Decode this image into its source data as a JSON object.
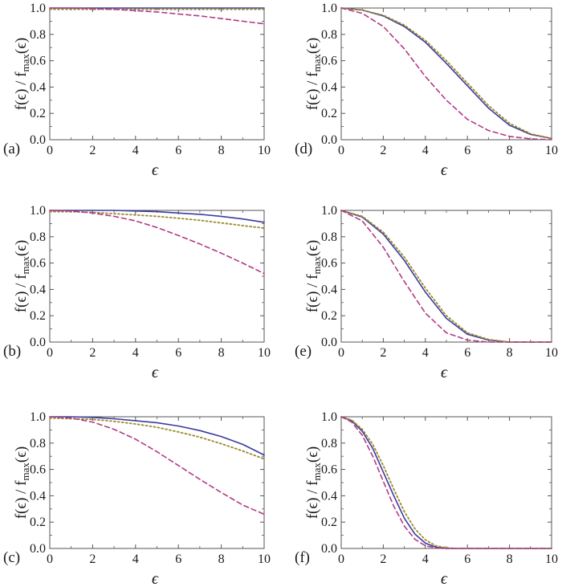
{
  "figure": {
    "colors": {
      "solid": "#3b3b9e",
      "dotted": "#9c8a2a",
      "dashed": "#b23a86",
      "axis": "#555555"
    }
  },
  "chart_data": [
    {
      "panel": "(a)",
      "type": "line",
      "xlabel": "ϵ",
      "ylabel_main": "f(ϵ) / f",
      "ylabel_sub": "max",
      "ylabel_tail": "(ϵ)",
      "xlim": [
        0,
        10
      ],
      "ylim": [
        0,
        1.0
      ],
      "xticks": [
        "0",
        "2",
        "4",
        "6",
        "8",
        "10"
      ],
      "yticks": [
        "0.0",
        "0.2",
        "0.4",
        "0.6",
        "0.8",
        "1.0"
      ],
      "x": [
        0,
        1,
        2,
        3,
        4,
        5,
        6,
        7,
        8,
        9,
        10
      ],
      "series": [
        {
          "style": "solid",
          "values": [
            1.0,
            1.0,
            1.0,
            1.0,
            1.0,
            1.0,
            1.0,
            1.0,
            1.0,
            1.0,
            1.0
          ]
        },
        {
          "style": "dotted",
          "values": [
            0.99,
            0.99,
            0.99,
            0.99,
            0.99,
            0.99,
            0.99,
            0.99,
            0.99,
            0.99,
            0.99
          ]
        },
        {
          "style": "dashed",
          "values": [
            1.0,
            1.0,
            0.995,
            0.99,
            0.98,
            0.97,
            0.955,
            0.94,
            0.92,
            0.9,
            0.88
          ]
        }
      ]
    },
    {
      "panel": "(b)",
      "type": "line",
      "xlabel": "ϵ",
      "ylabel_main": "f(ϵ) / f",
      "ylabel_sub": "max",
      "ylabel_tail": "(ϵ)",
      "xlim": [
        0,
        10
      ],
      "ylim": [
        0,
        1.0
      ],
      "xticks": [
        "0",
        "2",
        "4",
        "6",
        "8",
        "10"
      ],
      "yticks": [
        "0.0",
        "0.2",
        "0.4",
        "0.6",
        "0.8",
        "1.0"
      ],
      "x": [
        0,
        1,
        2,
        3,
        4,
        5,
        6,
        7,
        8,
        9,
        10
      ],
      "series": [
        {
          "style": "solid",
          "values": [
            1.0,
            1.0,
            1.0,
            1.0,
            0.995,
            0.99,
            0.98,
            0.97,
            0.955,
            0.935,
            0.91
          ]
        },
        {
          "style": "dotted",
          "values": [
            0.99,
            0.99,
            0.985,
            0.975,
            0.965,
            0.955,
            0.94,
            0.925,
            0.905,
            0.885,
            0.865
          ]
        },
        {
          "style": "dashed",
          "values": [
            1.0,
            0.995,
            0.98,
            0.955,
            0.92,
            0.87,
            0.81,
            0.745,
            0.675,
            0.6,
            0.52
          ]
        }
      ]
    },
    {
      "panel": "(c)",
      "type": "line",
      "xlabel": "ϵ",
      "ylabel_main": "f(ϵ) / f",
      "ylabel_sub": "max",
      "ylabel_tail": "(ϵ)",
      "xlim": [
        0,
        10
      ],
      "ylim": [
        0,
        1.0
      ],
      "xticks": [
        "0",
        "2",
        "4",
        "6",
        "8",
        "10"
      ],
      "yticks": [
        "0.0",
        "0.2",
        "0.4",
        "0.6",
        "0.8",
        "1.0"
      ],
      "x": [
        0,
        1,
        2,
        3,
        4,
        5,
        6,
        7,
        8,
        9,
        10
      ],
      "series": [
        {
          "style": "solid",
          "values": [
            1.0,
            1.0,
            0.995,
            0.985,
            0.97,
            0.955,
            0.93,
            0.895,
            0.85,
            0.79,
            0.71
          ]
        },
        {
          "style": "dotted",
          "values": [
            0.99,
            0.985,
            0.98,
            0.965,
            0.945,
            0.92,
            0.885,
            0.845,
            0.795,
            0.74,
            0.68
          ]
        },
        {
          "style": "dashed",
          "values": [
            1.0,
            0.99,
            0.96,
            0.905,
            0.83,
            0.735,
            0.63,
            0.525,
            0.425,
            0.33,
            0.26
          ]
        }
      ]
    },
    {
      "panel": "(d)",
      "type": "line",
      "xlabel": "ϵ",
      "ylabel_main": "f(ϵ) / f",
      "ylabel_sub": "max",
      "ylabel_tail": "(ϵ)",
      "xlim": [
        0,
        10
      ],
      "ylim": [
        0,
        1.0
      ],
      "xticks": [
        "0",
        "2",
        "4",
        "6",
        "8",
        "10"
      ],
      "yticks": [
        "0.0",
        "0.2",
        "0.4",
        "0.6",
        "0.8",
        "1.0"
      ],
      "x": [
        0,
        1,
        2,
        3,
        4,
        5,
        6,
        7,
        8,
        9,
        10
      ],
      "series": [
        {
          "style": "solid",
          "values": [
            1.0,
            0.985,
            0.94,
            0.86,
            0.74,
            0.58,
            0.41,
            0.24,
            0.11,
            0.04,
            0.01
          ]
        },
        {
          "style": "dotted",
          "values": [
            1.0,
            0.985,
            0.945,
            0.87,
            0.755,
            0.6,
            0.43,
            0.26,
            0.125,
            0.045,
            0.01
          ]
        },
        {
          "style": "dashed",
          "values": [
            1.0,
            0.96,
            0.86,
            0.69,
            0.48,
            0.3,
            0.155,
            0.07,
            0.025,
            0.007,
            0.0
          ]
        }
      ]
    },
    {
      "panel": "(e)",
      "type": "line",
      "xlabel": "ϵ",
      "ylabel_main": "f(ϵ) / f",
      "ylabel_sub": "max",
      "ylabel_tail": "(ϵ)",
      "xlim": [
        0,
        10
      ],
      "ylim": [
        0,
        1.0
      ],
      "xticks": [
        "0",
        "2",
        "4",
        "6",
        "8",
        "10"
      ],
      "yticks": [
        "0.0",
        "0.2",
        "0.4",
        "0.6",
        "0.8",
        "1.0"
      ],
      "x": [
        0,
        1,
        2,
        3,
        4,
        5,
        6,
        7,
        8,
        9,
        10
      ],
      "series": [
        {
          "style": "solid",
          "values": [
            1.0,
            0.95,
            0.82,
            0.62,
            0.38,
            0.18,
            0.06,
            0.015,
            0.0,
            0.0,
            0.0
          ]
        },
        {
          "style": "dotted",
          "values": [
            1.0,
            0.955,
            0.835,
            0.645,
            0.41,
            0.2,
            0.07,
            0.02,
            0.0,
            0.0,
            0.0
          ]
        },
        {
          "style": "dashed",
          "values": [
            1.0,
            0.92,
            0.72,
            0.46,
            0.22,
            0.07,
            0.015,
            0.0,
            0.0,
            0.0,
            0.0
          ]
        }
      ]
    },
    {
      "panel": "(f)",
      "type": "line",
      "xlabel": "ϵ",
      "ylabel_main": "f(ϵ) / f",
      "ylabel_sub": "max",
      "ylabel_tail": "(ϵ)",
      "xlim": [
        0,
        10
      ],
      "ylim": [
        0,
        1.0
      ],
      "xticks": [
        "0",
        "2",
        "4",
        "6",
        "8",
        "10"
      ],
      "yticks": [
        "0.0",
        "0.2",
        "0.4",
        "0.6",
        "0.8",
        "1.0"
      ],
      "x": [
        0,
        0.5,
        1,
        1.5,
        2,
        2.5,
        3,
        3.5,
        4,
        4.5,
        5,
        5.5,
        6,
        7,
        8,
        9,
        10
      ],
      "series": [
        {
          "style": "solid",
          "values": [
            1.0,
            0.97,
            0.89,
            0.76,
            0.58,
            0.4,
            0.23,
            0.11,
            0.04,
            0.01,
            0.0,
            0.0,
            0.0,
            0.0,
            0.0,
            0.0,
            0.0
          ]
        },
        {
          "style": "dotted",
          "values": [
            1.0,
            0.975,
            0.905,
            0.79,
            0.63,
            0.45,
            0.28,
            0.15,
            0.065,
            0.02,
            0.005,
            0.0,
            0.0,
            0.0,
            0.0,
            0.0,
            0.0
          ]
        },
        {
          "style": "dashed",
          "values": [
            1.0,
            0.96,
            0.86,
            0.7,
            0.51,
            0.32,
            0.17,
            0.07,
            0.02,
            0.005,
            0.0,
            0.0,
            0.0,
            0.0,
            0.0,
            0.0,
            0.0
          ]
        }
      ]
    }
  ]
}
